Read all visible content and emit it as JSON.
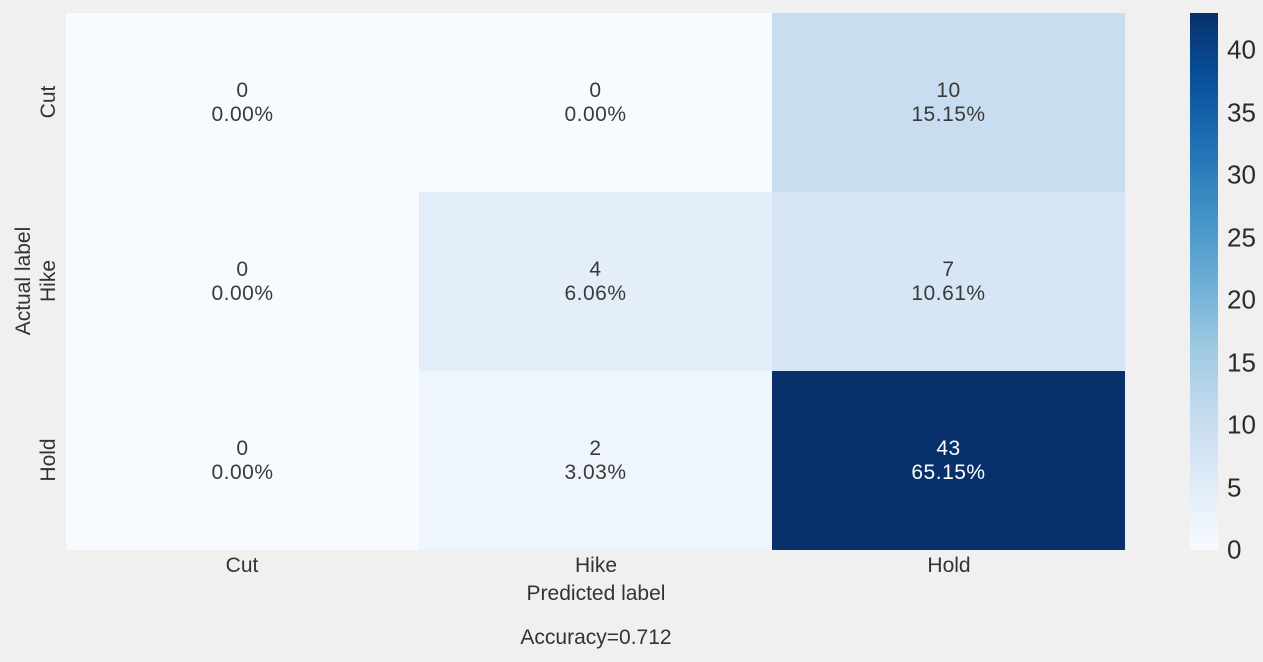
{
  "figure": {
    "background": "#f0f0f0",
    "text_color": "#333333"
  },
  "chart_data": {
    "type": "heatmap",
    "title": "",
    "xlabel": "Predicted label",
    "ylabel": "Actual label",
    "x_categories": [
      "Cut",
      "Hike",
      "Hold"
    ],
    "y_categories": [
      "Cut",
      "Hike",
      "Hold"
    ],
    "matrix_counts": [
      [
        0,
        0,
        10
      ],
      [
        0,
        4,
        7
      ],
      [
        0,
        2,
        43
      ]
    ],
    "matrix_percents": [
      [
        "0.00%",
        "0.00%",
        "15.15%"
      ],
      [
        "0.00%",
        "6.06%",
        "10.61%"
      ],
      [
        "0.00%",
        "3.03%",
        "65.15%"
      ]
    ],
    "annotation": "Accuracy=0.712",
    "colormap": "Blues",
    "vmin": 0,
    "vmax": 43,
    "legend_position": "right-colorbar",
    "grid": false,
    "colorbar_ticks": [
      "0",
      "5",
      "10",
      "15",
      "20",
      "25",
      "30",
      "35",
      "40"
    ],
    "colorbar_stops": [
      "#f7fbff",
      "#deebf7",
      "#c6dbef",
      "#9ecae1",
      "#6baed6",
      "#4292c6",
      "#2171b5",
      "#08519c",
      "#08306b"
    ],
    "cells": [
      {
        "count": "0",
        "percent": "0.00%",
        "bg": "#f7fbff",
        "fg": "#3a3a3a"
      },
      {
        "count": "0",
        "percent": "0.00%",
        "bg": "#f7fbff",
        "fg": "#3a3a3a"
      },
      {
        "count": "10",
        "percent": "15.15%",
        "bg": "#c9ddf0",
        "fg": "#3a3a3a"
      },
      {
        "count": "0",
        "percent": "0.00%",
        "bg": "#f7fbff",
        "fg": "#3a3a3a"
      },
      {
        "count": "4",
        "percent": "6.06%",
        "bg": "#e4eef9",
        "fg": "#3a3a3a"
      },
      {
        "count": "7",
        "percent": "10.61%",
        "bg": "#d6e6f4",
        "fg": "#3a3a3a"
      },
      {
        "count": "0",
        "percent": "0.00%",
        "bg": "#f7fbff",
        "fg": "#3a3a3a"
      },
      {
        "count": "2",
        "percent": "3.03%",
        "bg": "#eef5fc",
        "fg": "#3a3a3a"
      },
      {
        "count": "43",
        "percent": "65.15%",
        "bg": "#08306b",
        "fg": "#ffffff"
      }
    ]
  }
}
